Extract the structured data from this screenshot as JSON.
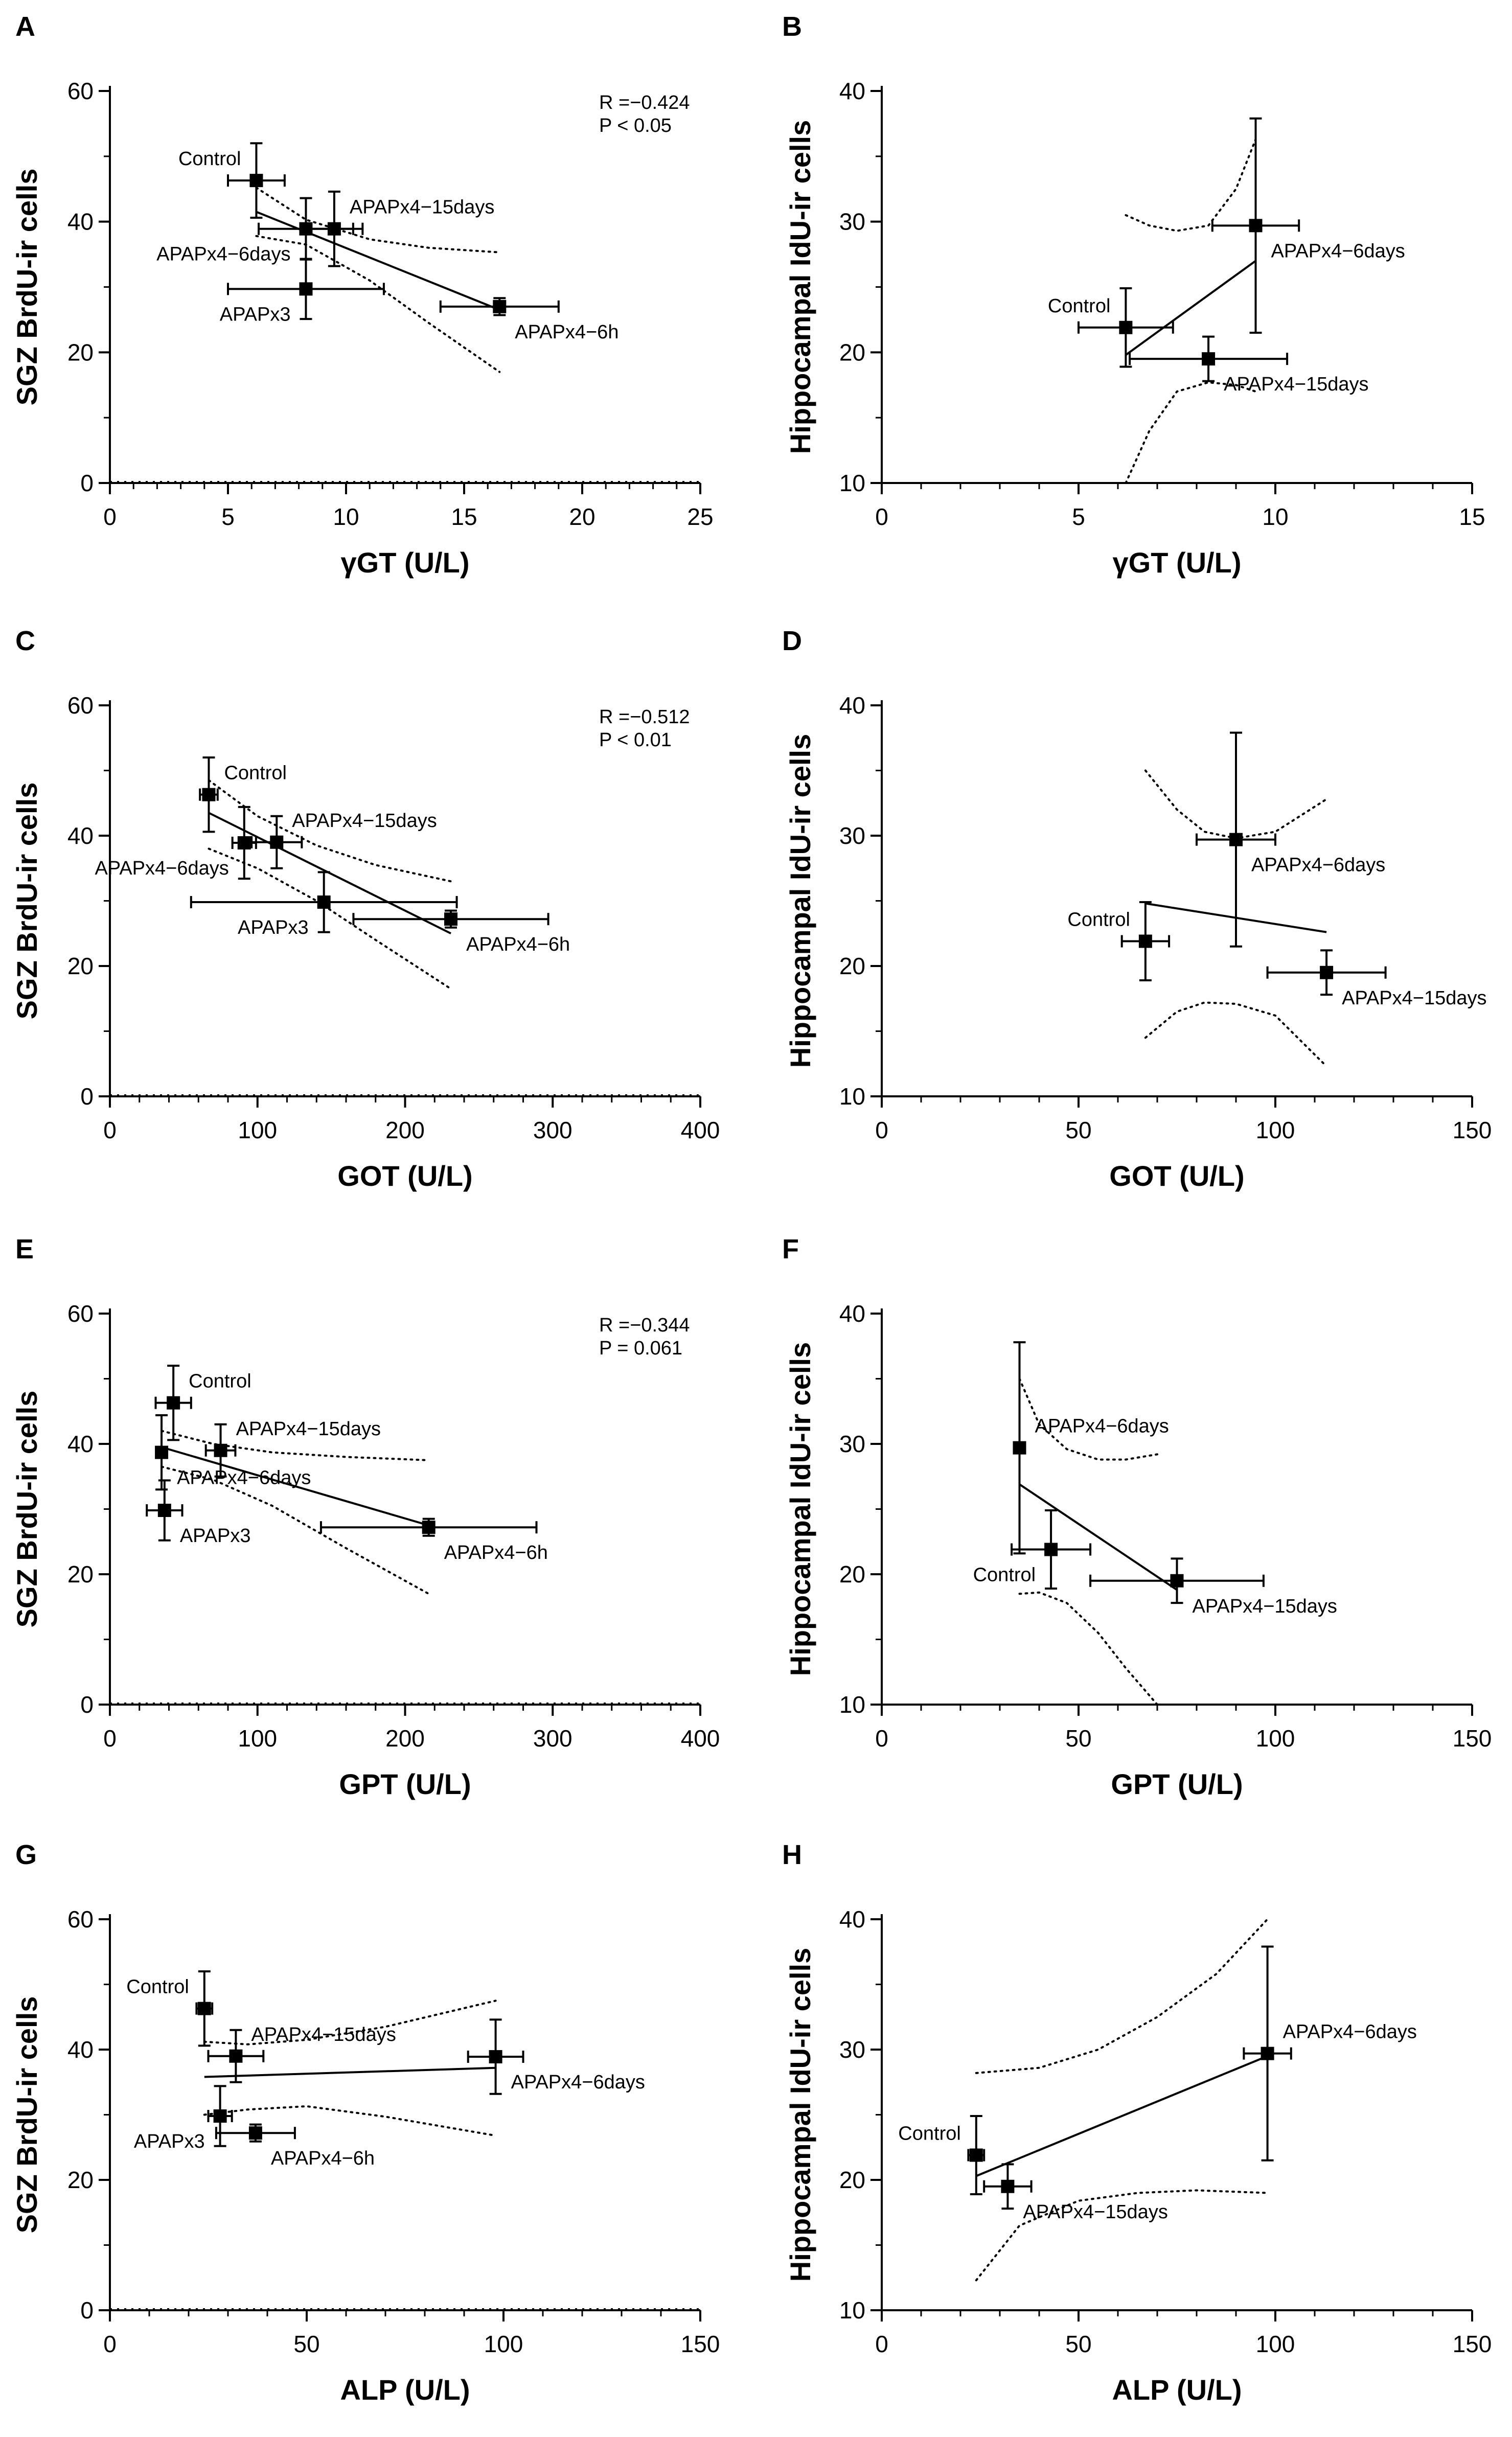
{
  "figure": {
    "colors": {
      "ink": "#000000",
      "background": "#ffffff"
    }
  },
  "chart_data": [
    {
      "panel": "A",
      "type": "scatter",
      "xlabel": "γGT (U/L)",
      "ylabel": "SGZ BrdU-ir cells",
      "xlim": [
        0,
        25
      ],
      "ylim": [
        0,
        60
      ],
      "xticks": [
        0,
        5,
        10,
        15,
        20,
        25
      ],
      "yticks": [
        0,
        20,
        40,
        60
      ],
      "stats": [
        "R =−0.424",
        "P < 0.05"
      ],
      "points": [
        {
          "label": "Control",
          "x": 6.2,
          "y": 46.3,
          "xerr": 1.2,
          "yerr": 5.7,
          "label_pos": "left-above"
        },
        {
          "label": "APAPx4−15days",
          "x": 9.5,
          "y": 38.9,
          "xerr": 1.2,
          "yerr": 5.7,
          "label_pos": "right-above"
        },
        {
          "label": "APAPx4−6days",
          "x": 8.3,
          "y": 38.9,
          "xerr": 2.0,
          "yerr": 4.7,
          "label_pos": "left-below"
        },
        {
          "label": "APAPx3",
          "x": 8.3,
          "y": 29.7,
          "xerr": 3.3,
          "yerr": 4.6,
          "label_pos": "left-below"
        },
        {
          "label": "APAPx4−6h",
          "x": 16.5,
          "y": 27.0,
          "xerr": 2.5,
          "yerr": 1.3,
          "label_pos": "right-below"
        }
      ],
      "fit": {
        "x": [
          6.2,
          16.5
        ],
        "y": [
          41.5,
          26.5
        ]
      },
      "ci_upper": {
        "x": [
          6.2,
          8.3,
          11,
          13.5,
          16.5
        ],
        "y": [
          45.2,
          40.3,
          37.3,
          36.0,
          35.3
        ]
      },
      "ci_lower": {
        "x": [
          6.2,
          8.3,
          11,
          13.5,
          16.5
        ],
        "y": [
          37.8,
          36.5,
          31.0,
          24.5,
          17.0
        ]
      }
    },
    {
      "panel": "B",
      "type": "scatter",
      "xlabel": "γGT (U/L)",
      "ylabel": "Hippocampal IdU-ir cells",
      "xlim": [
        0,
        15
      ],
      "ylim": [
        10,
        40
      ],
      "xticks": [
        0,
        5,
        10,
        15
      ],
      "yticks": [
        10,
        20,
        30,
        40
      ],
      "stats": [],
      "points": [
        {
          "label": "Control",
          "x": 6.2,
          "y": 21.9,
          "xerr": 1.2,
          "yerr": 3.0,
          "label_pos": "left-above"
        },
        {
          "label": "APAPx4−6days",
          "x": 9.5,
          "y": 29.7,
          "xerr": 1.1,
          "yerr": 8.2,
          "label_pos": "right-below"
        },
        {
          "label": "APAPx4−15days",
          "x": 8.3,
          "y": 19.5,
          "xerr": 2.0,
          "yerr": 1.7,
          "label_pos": "right-below"
        }
      ],
      "fit": {
        "x": [
          6.2,
          9.5
        ],
        "y": [
          19.8,
          27.0
        ]
      },
      "ci_upper": {
        "x": [
          6.2,
          6.8,
          7.5,
          8.3,
          9.0,
          9.5
        ],
        "y": [
          30.5,
          29.7,
          29.3,
          29.7,
          32.5,
          36.3
        ]
      },
      "ci_lower": {
        "x": [
          6.2,
          6.8,
          7.5,
          8.3,
          9.0,
          9.5
        ],
        "y": [
          10.0,
          14.0,
          17.0,
          17.7,
          17.5,
          17.0
        ]
      }
    },
    {
      "panel": "C",
      "type": "scatter",
      "xlabel": "GOT (U/L)",
      "ylabel": "SGZ BrdU-ir cells",
      "xlim": [
        0,
        400
      ],
      "ylim": [
        0,
        60
      ],
      "xticks": [
        0,
        100,
        200,
        300,
        400
      ],
      "yticks": [
        0,
        20,
        40,
        60
      ],
      "stats": [
        "R =−0.512",
        "P < 0.01"
      ],
      "points": [
        {
          "label": "Control",
          "x": 67,
          "y": 46.3,
          "xerr": 6,
          "yerr": 5.7,
          "label_pos": "right-above"
        },
        {
          "label": "APAPx4−15days",
          "x": 113,
          "y": 39.0,
          "xerr": 17,
          "yerr": 4.0,
          "label_pos": "right-above"
        },
        {
          "label": "APAPx4−6days",
          "x": 91,
          "y": 38.9,
          "xerr": 8,
          "yerr": 5.5,
          "label_pos": "left-below"
        },
        {
          "label": "APAPx3",
          "x": 145,
          "y": 29.8,
          "xerr": 90,
          "yerr": 4.6,
          "label_pos": "left-below"
        },
        {
          "label": "APAPx4−6h",
          "x": 231,
          "y": 27.2,
          "xerr": 66,
          "yerr": 1.3,
          "label_pos": "right-below"
        }
      ],
      "fit": {
        "x": [
          67,
          231
        ],
        "y": [
          43.5,
          25.0
        ]
      },
      "ci_upper": {
        "x": [
          67,
          100,
          140,
          180,
          231
        ],
        "y": [
          48.5,
          43.0,
          38.5,
          35.5,
          33.0
        ]
      },
      "ci_lower": {
        "x": [
          67,
          100,
          140,
          180,
          231
        ],
        "y": [
          38.0,
          35.0,
          30.0,
          24.0,
          16.5
        ]
      }
    },
    {
      "panel": "D",
      "type": "scatter",
      "xlabel": "GOT (U/L)",
      "ylabel": "Hippocampal IdU-ir cells",
      "xlim": [
        0,
        150
      ],
      "ylim": [
        10,
        40
      ],
      "xticks": [
        0,
        50,
        100,
        150
      ],
      "yticks": [
        10,
        20,
        30,
        40
      ],
      "stats": [],
      "points": [
        {
          "label": "Control",
          "x": 67,
          "y": 21.9,
          "xerr": 6,
          "yerr": 3.0,
          "label_pos": "left-above"
        },
        {
          "label": "APAPx4−6days",
          "x": 90,
          "y": 29.7,
          "xerr": 10,
          "yerr": 8.2,
          "label_pos": "right-below"
        },
        {
          "label": "APAPx4−15days",
          "x": 113,
          "y": 19.5,
          "xerr": 15,
          "yerr": 1.7,
          "label_pos": "right-below"
        }
      ],
      "fit": {
        "x": [
          67,
          113
        ],
        "y": [
          24.8,
          22.6
        ]
      },
      "ci_upper": {
        "x": [
          67,
          75,
          82,
          90,
          100,
          113
        ],
        "y": [
          35.0,
          32.0,
          30.3,
          29.8,
          30.3,
          32.8
        ]
      },
      "ci_lower": {
        "x": [
          67,
          75,
          82,
          90,
          100,
          113
        ],
        "y": [
          14.5,
          16.5,
          17.2,
          17.1,
          16.2,
          12.3
        ]
      }
    },
    {
      "panel": "E",
      "type": "scatter",
      "xlabel": "GPT (U/L)",
      "ylabel": "SGZ BrdU-ir cells",
      "xlim": [
        0,
        400
      ],
      "ylim": [
        0,
        60
      ],
      "xticks": [
        0,
        100,
        200,
        300,
        400
      ],
      "yticks": [
        0,
        20,
        40,
        60
      ],
      "stats": [
        "R =−0.344",
        "P = 0.061"
      ],
      "points": [
        {
          "label": "Control",
          "x": 43,
          "y": 46.3,
          "xerr": 12,
          "yerr": 5.7,
          "label_pos": "right-above"
        },
        {
          "label": "APAPx4−15days",
          "x": 75,
          "y": 39.0,
          "xerr": 10,
          "yerr": 4.0,
          "label_pos": "right-above"
        },
        {
          "label": "APAPx4−6days",
          "x": 35,
          "y": 38.7,
          "xerr": 3,
          "yerr": 5.7,
          "label_pos": "right-below"
        },
        {
          "label": "APAPx3",
          "x": 37,
          "y": 29.8,
          "xerr": 12,
          "yerr": 4.6,
          "label_pos": "right-below"
        },
        {
          "label": "APAPx4−6h",
          "x": 216,
          "y": 27.2,
          "xerr": 73,
          "yerr": 1.3,
          "label_pos": "right-below"
        }
      ],
      "fit": {
        "x": [
          35,
          216
        ],
        "y": [
          39.5,
          27.5
        ]
      },
      "ci_upper": {
        "x": [
          35,
          70,
          110,
          160,
          216
        ],
        "y": [
          42.0,
          40.0,
          38.7,
          38.0,
          37.5
        ]
      },
      "ci_lower": {
        "x": [
          35,
          70,
          110,
          160,
          216
        ],
        "y": [
          36.5,
          34.5,
          30.5,
          24.0,
          17.0
        ]
      }
    },
    {
      "panel": "F",
      "type": "scatter",
      "xlabel": "GPT (U/L)",
      "ylabel": "Hippocampal IdU-ir cells",
      "xlim": [
        0,
        150
      ],
      "ylim": [
        10,
        40
      ],
      "xticks": [
        0,
        50,
        100,
        150
      ],
      "yticks": [
        10,
        20,
        30,
        40
      ],
      "stats": [],
      "points": [
        {
          "label": "APAPx4−6days",
          "x": 35,
          "y": 29.7,
          "xerr": 0,
          "yerr": 8.1,
          "label_pos": "right-above"
        },
        {
          "label": "Control",
          "x": 43,
          "y": 21.9,
          "xerr": 10,
          "yerr": 3.0,
          "label_pos": "left-below"
        },
        {
          "label": "APAPx4−15days",
          "x": 75,
          "y": 19.5,
          "xerr": 22,
          "yerr": 1.7,
          "label_pos": "right-below"
        }
      ],
      "fit": {
        "x": [
          35,
          75
        ],
        "y": [
          26.9,
          18.8
        ]
      },
      "ci_upper": {
        "x": [
          35,
          40,
          47,
          55,
          62,
          70
        ],
        "y": [
          35.0,
          31.5,
          29.6,
          28.8,
          28.8,
          29.2
        ]
      },
      "ci_lower": {
        "x": [
          35,
          40,
          47,
          55,
          62,
          70
        ],
        "y": [
          18.5,
          18.6,
          17.8,
          15.5,
          12.8,
          10.0
        ]
      }
    },
    {
      "panel": "G",
      "type": "scatter",
      "xlabel": "ALP (U/L)",
      "ylabel": "SGZ BrdU-ir cells",
      "xlim": [
        0,
        150
      ],
      "ylim": [
        0,
        60
      ],
      "xticks": [
        0,
        50,
        100,
        150
      ],
      "yticks": [
        0,
        20,
        40,
        60
      ],
      "stats": [],
      "points": [
        {
          "label": "Control",
          "x": 24,
          "y": 46.3,
          "xerr": 2,
          "yerr": 5.7,
          "label_pos": "left-above"
        },
        {
          "label": "APAPx4−15days",
          "x": 32,
          "y": 39.0,
          "xerr": 7,
          "yerr": 4.0,
          "label_pos": "right-above"
        },
        {
          "label": "APAPx4−6days",
          "x": 98,
          "y": 38.9,
          "xerr": 7,
          "yerr": 5.7,
          "label_pos": "right-below"
        },
        {
          "label": "APAPx3",
          "x": 28,
          "y": 29.8,
          "xerr": 3,
          "yerr": 4.6,
          "label_pos": "left-below"
        },
        {
          "label": "APAPx4−6h",
          "x": 37,
          "y": 27.2,
          "xerr": 10,
          "yerr": 1.3,
          "label_pos": "right-below"
        }
      ],
      "fit": {
        "x": [
          24,
          98
        ],
        "y": [
          35.8,
          37.2
        ]
      },
      "ci_upper": {
        "x": [
          24,
          35,
          50,
          70,
          98
        ],
        "y": [
          41.2,
          40.8,
          41.5,
          43.5,
          47.5
        ]
      },
      "ci_lower": {
        "x": [
          24,
          35,
          50,
          70,
          98
        ],
        "y": [
          30.0,
          30.8,
          31.3,
          29.7,
          26.8
        ]
      }
    },
    {
      "panel": "H",
      "type": "scatter",
      "xlabel": "ALP (U/L)",
      "ylabel": "Hippocampal IdU-ir cells",
      "xlim": [
        0,
        150
      ],
      "ylim": [
        10,
        40
      ],
      "xticks": [
        0,
        50,
        100,
        150
      ],
      "yticks": [
        10,
        20,
        30,
        40
      ],
      "stats": [],
      "points": [
        {
          "label": "Control",
          "x": 24,
          "y": 21.9,
          "xerr": 2,
          "yerr": 3.0,
          "label_pos": "left-above"
        },
        {
          "label": "APAPx4−6days",
          "x": 98,
          "y": 29.7,
          "xerr": 6,
          "yerr": 8.2,
          "label_pos": "right-above"
        },
        {
          "label": "APAPx4−15days",
          "x": 32,
          "y": 19.5,
          "xerr": 6,
          "yerr": 1.7,
          "label_pos": "right-below"
        }
      ],
      "fit": {
        "x": [
          24,
          98
        ],
        "y": [
          20.3,
          29.5
        ]
      },
      "ci_upper": {
        "x": [
          24,
          40,
          55,
          70,
          85,
          98
        ],
        "y": [
          28.2,
          28.6,
          30.0,
          32.5,
          35.8,
          40.0
        ]
      },
      "ci_lower": {
        "x": [
          24,
          35,
          50,
          65,
          80,
          98
        ],
        "y": [
          12.3,
          16.5,
          18.4,
          19.0,
          19.2,
          19.0
        ]
      }
    }
  ]
}
